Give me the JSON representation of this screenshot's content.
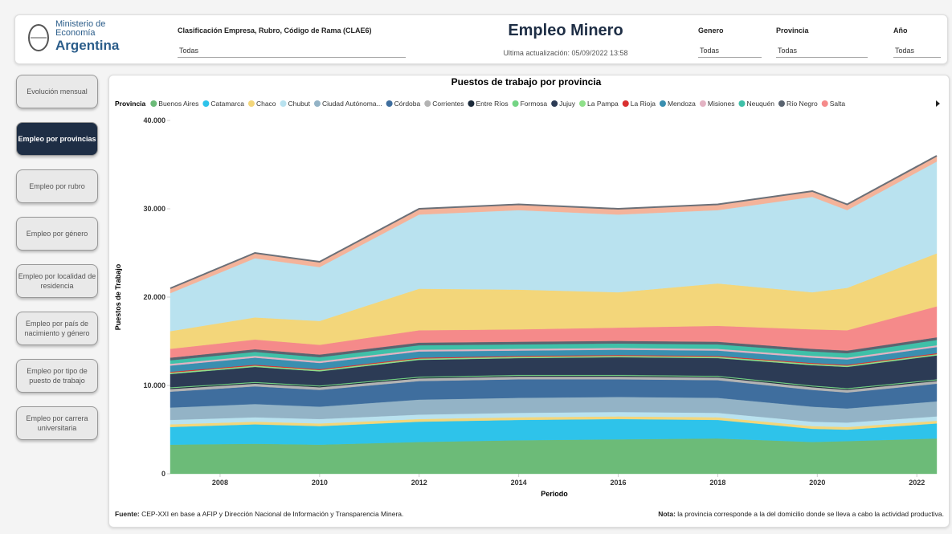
{
  "header": {
    "logo": [
      "Ministerio de",
      "Economía",
      "Argentina"
    ],
    "filter_clae": {
      "label": "Clasificación Empresa, Rubro, Código de Rama (CLAE6)",
      "value": "Todas"
    },
    "title": "Empleo Minero",
    "updated": "Ultima actualización: 05/09/2022 13:58",
    "filter_genero": {
      "label": "Genero",
      "value": "Todas"
    },
    "filter_provincia": {
      "label": "Provincia",
      "value": "Todas"
    },
    "filter_anio": {
      "label": "Año",
      "value": "Todas"
    }
  },
  "nav": [
    "Evolución mensual",
    "Empleo por provincias",
    "Empleo por rubro",
    "Empleo por género",
    "Empleo por localidad de residencia",
    "Empleo por país de nacimiento y género",
    "Empleo por tipo de puesto de trabajo",
    "Empleo por carrera universitaria"
  ],
  "chart_data": {
    "type": "stacked_area",
    "title": "Puestos de trabajo por provincia",
    "legend_title": "Provincia",
    "x_label": "Periodo",
    "y_label": "Puestos de Trabajo",
    "x": [
      2007,
      2008.7,
      2010,
      2012,
      2014,
      2016,
      2018,
      2019.9,
      2020.6,
      2022.4
    ],
    "xlim": [
      2007,
      2022.4
    ],
    "xticks": [
      2008,
      2010,
      2012,
      2014,
      2016,
      2018,
      2020,
      2022
    ],
    "ylim": [
      0,
      40000
    ],
    "yticks": [
      0,
      {
        "value": 10000,
        "label": "10.000"
      },
      {
        "value": 20000,
        "label": "20.000"
      },
      {
        "value": 30000,
        "label": "30.000"
      },
      {
        "value": 40000,
        "label": "40.000"
      }
    ],
    "series": [
      {
        "name": "Buenos Aires",
        "color": "#6cbb78",
        "values": [
          3300,
          3400,
          3300,
          3600,
          3800,
          3900,
          4000,
          3600,
          3700,
          4000
        ]
      },
      {
        "name": "Catamarca",
        "color": "#2ec3ea",
        "values": [
          2000,
          2200,
          2100,
          2300,
          2300,
          2300,
          2100,
          1500,
          1300,
          1700
        ]
      },
      {
        "name": "Chaco",
        "color": "#f3d67a",
        "values": [
          300,
          300,
          300,
          300,
          300,
          300,
          300,
          300,
          300,
          300
        ]
      },
      {
        "name": "Chubut",
        "color": "#b9e2ef",
        "values": [
          500,
          500,
          500,
          500,
          500,
          500,
          500,
          500,
          500,
          500
        ]
      },
      {
        "name": "Ciudad Autónoma...",
        "color": "#93b3c6",
        "values": [
          1400,
          1500,
          1400,
          1700,
          1700,
          1700,
          1700,
          1700,
          1600,
          1700
        ]
      },
      {
        "name": "Córdoba",
        "color": "#3f6e9e",
        "values": [
          1800,
          2000,
          1900,
          2100,
          2100,
          2000,
          2000,
          1900,
          1800,
          2000
        ]
      },
      {
        "name": "Corrientes",
        "color": "#b3b3b3",
        "values": [
          300,
          300,
          300,
          300,
          300,
          300,
          300,
          300,
          300,
          300
        ]
      },
      {
        "name": "Entre Ríos",
        "color": "#1b2a3a",
        "values": [
          100,
          100,
          100,
          100,
          100,
          100,
          100,
          100,
          100,
          100
        ]
      },
      {
        "name": "Formosa",
        "color": "#74d484",
        "values": [
          100,
          100,
          100,
          100,
          100,
          100,
          100,
          100,
          100,
          100
        ]
      },
      {
        "name": "Jujuy",
        "color": "#2c3b55",
        "values": [
          1500,
          1700,
          1600,
          1900,
          1900,
          2000,
          2000,
          2300,
          2400,
          2700
        ]
      },
      {
        "name": "La Pampa",
        "color": "#8fe08a",
        "values": [
          150,
          150,
          150,
          150,
          150,
          150,
          150,
          150,
          150,
          150
        ]
      },
      {
        "name": "La Rioja",
        "color": "#d93030",
        "values": [
          100,
          100,
          100,
          100,
          100,
          100,
          100,
          100,
          100,
          100
        ]
      },
      {
        "name": "Mendoza",
        "color": "#3a8fb0",
        "values": [
          700,
          800,
          700,
          700,
          600,
          600,
          600,
          600,
          600,
          700
        ]
      },
      {
        "name": "Misiones",
        "color": "#e3b3c3",
        "values": [
          200,
          200,
          200,
          200,
          200,
          200,
          200,
          200,
          200,
          200
        ]
      },
      {
        "name": "Neuquén",
        "color": "#3fc0a8",
        "values": [
          400,
          450,
          450,
          500,
          500,
          500,
          500,
          500,
          500,
          600
        ]
      },
      {
        "name": "Río Negro",
        "color": "#5a6470",
        "values": [
          300,
          300,
          300,
          300,
          300,
          300,
          300,
          300,
          300,
          300
        ]
      },
      {
        "name": "Salta",
        "color": "#f58a8a",
        "values": [
          1000,
          1100,
          1100,
          1400,
          1400,
          1500,
          1800,
          2200,
          2300,
          3500
        ]
      },
      {
        "color": "#f3d67a",
        "values": [
          2000,
          2500,
          2700,
          4700,
          4500,
          4000,
          4800,
          4200,
          4800,
          6000
        ]
      },
      {
        "color": "#b9e2ef",
        "values": [
          4300,
          6700,
          6100,
          8400,
          9000,
          8800,
          8300,
          10800,
          8800,
          10400
        ]
      },
      {
        "color": "#f4b39a",
        "values": [
          550,
          600,
          600,
          650,
          650,
          650,
          650,
          650,
          650,
          650
        ]
      }
    ]
  },
  "footer": {
    "source_label": "Fuente:",
    "source": "CEP-XXI en base a AFIP y Dirección Nacional de Información y Transparencia Minera.",
    "note_label": "Nota:",
    "note": "la provincia corresponde a la del domicilio donde se lleva a cabo la actividad productiva."
  }
}
